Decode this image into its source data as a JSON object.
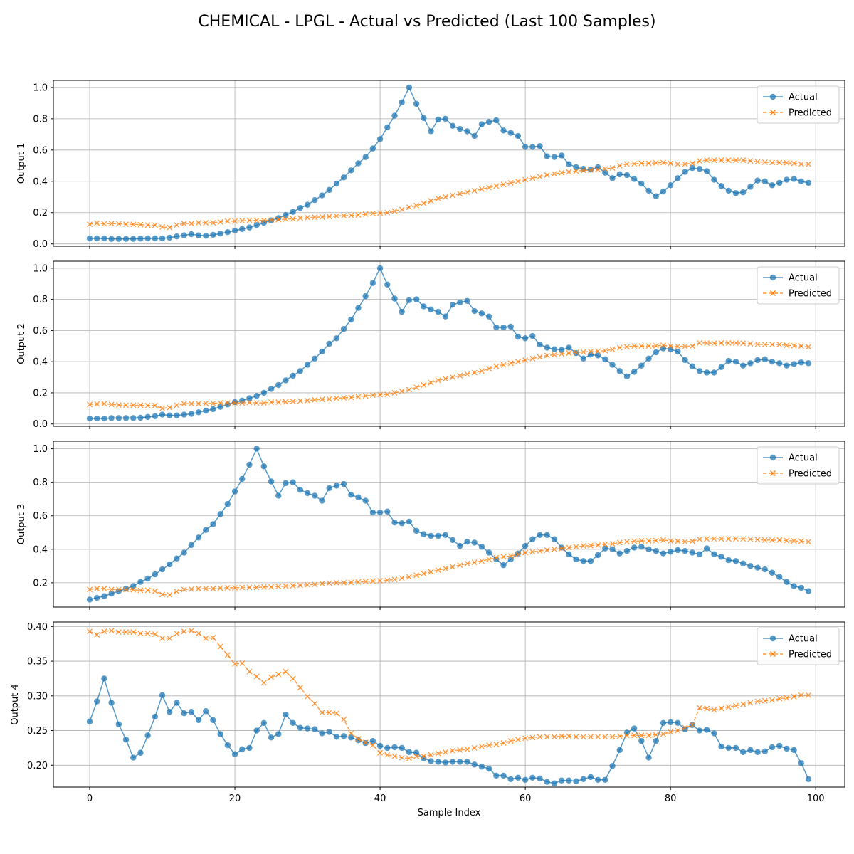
{
  "title": "CHEMICAL - LPGL - Actual vs Predicted (Last 100 Samples)",
  "xlabel": "Sample Index",
  "colors": {
    "actual": "#1f77b4",
    "predicted": "#ff7f0e",
    "grid": "#b0b0b0"
  },
  "chart_data": [
    {
      "type": "line",
      "ylabel": "Output 1",
      "xlim": [
        -5,
        104
      ],
      "ylim": [
        -0.015,
        1.045
      ],
      "xticks": [
        0,
        20,
        40,
        60,
        80,
        100
      ],
      "yticks": [
        0.0,
        0.2,
        0.4,
        0.6,
        0.8,
        1.0
      ],
      "yticklabels": [
        "0.0",
        "0.2",
        "0.4",
        "0.6",
        "0.8",
        "1.0"
      ],
      "grid": true,
      "legend": "top-right",
      "series": [
        {
          "name": "Actual",
          "marker": "o",
          "line": "solid",
          "values": [
            0.035,
            0.035,
            0.035,
            0.032,
            0.032,
            0.032,
            0.032,
            0.034,
            0.035,
            0.035,
            0.035,
            0.04,
            0.048,
            0.055,
            0.062,
            0.055,
            0.052,
            0.058,
            0.066,
            0.075,
            0.085,
            0.095,
            0.105,
            0.12,
            0.135,
            0.15,
            0.165,
            0.185,
            0.205,
            0.23,
            0.25,
            0.28,
            0.31,
            0.345,
            0.385,
            0.425,
            0.47,
            0.515,
            0.555,
            0.61,
            0.67,
            0.745,
            0.82,
            0.905,
            1.0,
            0.895,
            0.805,
            0.72,
            0.795,
            0.8,
            0.755,
            0.735,
            0.72,
            0.69,
            0.765,
            0.78,
            0.79,
            0.725,
            0.71,
            0.69,
            0.62,
            0.62,
            0.625,
            0.56,
            0.555,
            0.565,
            0.51,
            0.49,
            0.48,
            0.475,
            0.49,
            0.455,
            0.42,
            0.445,
            0.44,
            0.415,
            0.385,
            0.34,
            0.305,
            0.335,
            0.375,
            0.42,
            0.46,
            0.485,
            0.48,
            0.465,
            0.41,
            0.37,
            0.34,
            0.325,
            0.33,
            0.365,
            0.405,
            0.4,
            0.375,
            0.39,
            0.41,
            0.415,
            0.4,
            0.39
          ]
        },
        {
          "name": "Predicted",
          "marker": "x",
          "line": "dashed",
          "values": [
            0.125,
            0.133,
            0.128,
            0.13,
            0.128,
            0.125,
            0.125,
            0.123,
            0.12,
            0.12,
            0.108,
            0.105,
            0.12,
            0.13,
            0.13,
            0.135,
            0.135,
            0.135,
            0.14,
            0.145,
            0.145,
            0.148,
            0.15,
            0.15,
            0.15,
            0.152,
            0.155,
            0.158,
            0.16,
            0.165,
            0.168,
            0.17,
            0.172,
            0.175,
            0.178,
            0.18,
            0.182,
            0.185,
            0.19,
            0.195,
            0.198,
            0.2,
            0.21,
            0.22,
            0.235,
            0.245,
            0.26,
            0.275,
            0.29,
            0.3,
            0.31,
            0.32,
            0.33,
            0.34,
            0.35,
            0.36,
            0.37,
            0.38,
            0.39,
            0.4,
            0.41,
            0.42,
            0.43,
            0.44,
            0.448,
            0.455,
            0.46,
            0.465,
            0.47,
            0.472,
            0.475,
            0.48,
            0.485,
            0.5,
            0.51,
            0.512,
            0.515,
            0.515,
            0.518,
            0.52,
            0.515,
            0.51,
            0.51,
            0.515,
            0.53,
            0.535,
            0.535,
            0.535,
            0.535,
            0.535,
            0.535,
            0.53,
            0.525,
            0.522,
            0.52,
            0.52,
            0.518,
            0.515,
            0.51,
            0.51
          ]
        }
      ]
    },
    {
      "type": "line",
      "ylabel": "Output 2",
      "xlim": [
        -5,
        104
      ],
      "ylim": [
        -0.015,
        1.045
      ],
      "xticks": [
        0,
        20,
        40,
        60,
        80,
        100
      ],
      "yticks": [
        0.0,
        0.2,
        0.4,
        0.6,
        0.8,
        1.0
      ],
      "yticklabels": [
        "0.0",
        "0.2",
        "0.4",
        "0.6",
        "0.8",
        "1.0"
      ],
      "grid": true,
      "legend": "top-right",
      "series": [
        {
          "name": "Actual",
          "marker": "o",
          "line": "solid",
          "values": [
            0.035,
            0.035,
            0.035,
            0.038,
            0.038,
            0.038,
            0.038,
            0.04,
            0.045,
            0.05,
            0.06,
            0.055,
            0.055,
            0.06,
            0.065,
            0.075,
            0.085,
            0.095,
            0.11,
            0.125,
            0.14,
            0.15,
            0.165,
            0.18,
            0.2,
            0.225,
            0.25,
            0.28,
            0.31,
            0.34,
            0.38,
            0.42,
            0.465,
            0.515,
            0.55,
            0.61,
            0.67,
            0.745,
            0.82,
            0.905,
            1.0,
            0.895,
            0.805,
            0.72,
            0.795,
            0.8,
            0.755,
            0.735,
            0.72,
            0.69,
            0.765,
            0.78,
            0.79,
            0.725,
            0.71,
            0.69,
            0.62,
            0.62,
            0.625,
            0.56,
            0.55,
            0.565,
            0.51,
            0.49,
            0.48,
            0.475,
            0.49,
            0.455,
            0.42,
            0.445,
            0.44,
            0.415,
            0.38,
            0.34,
            0.305,
            0.335,
            0.375,
            0.42,
            0.46,
            0.485,
            0.48,
            0.465,
            0.41,
            0.37,
            0.34,
            0.33,
            0.33,
            0.365,
            0.405,
            0.4,
            0.375,
            0.39,
            0.41,
            0.415,
            0.4,
            0.39,
            0.375,
            0.385,
            0.395,
            0.39
          ]
        },
        {
          "name": "Predicted",
          "marker": "x",
          "line": "dashed",
          "values": [
            0.125,
            0.128,
            0.13,
            0.125,
            0.122,
            0.12,
            0.12,
            0.12,
            0.118,
            0.118,
            0.1,
            0.105,
            0.12,
            0.13,
            0.13,
            0.13,
            0.132,
            0.132,
            0.135,
            0.135,
            0.135,
            0.135,
            0.138,
            0.135,
            0.135,
            0.14,
            0.14,
            0.142,
            0.145,
            0.148,
            0.15,
            0.155,
            0.158,
            0.16,
            0.165,
            0.168,
            0.17,
            0.175,
            0.18,
            0.185,
            0.188,
            0.19,
            0.2,
            0.21,
            0.22,
            0.235,
            0.25,
            0.265,
            0.28,
            0.29,
            0.3,
            0.31,
            0.32,
            0.33,
            0.34,
            0.355,
            0.37,
            0.38,
            0.39,
            0.4,
            0.41,
            0.42,
            0.43,
            0.44,
            0.445,
            0.45,
            0.455,
            0.46,
            0.462,
            0.465,
            0.468,
            0.47,
            0.478,
            0.49,
            0.495,
            0.5,
            0.5,
            0.5,
            0.502,
            0.505,
            0.5,
            0.498,
            0.498,
            0.5,
            0.52,
            0.52,
            0.518,
            0.52,
            0.52,
            0.52,
            0.518,
            0.515,
            0.512,
            0.51,
            0.51,
            0.51,
            0.505,
            0.502,
            0.5,
            0.495
          ]
        }
      ]
    },
    {
      "type": "line",
      "ylabel": "Output 3",
      "xlim": [
        -5,
        104
      ],
      "ylim": [
        0.055,
        1.045
      ],
      "xticks": [
        0,
        20,
        40,
        60,
        80,
        100
      ],
      "yticks": [
        0.2,
        0.4,
        0.6,
        0.8,
        1.0
      ],
      "yticklabels": [
        "0.2",
        "0.4",
        "0.6",
        "0.8",
        "1.0"
      ],
      "grid": true,
      "legend": "top-right",
      "series": [
        {
          "name": "Actual",
          "marker": "o",
          "line": "solid",
          "values": [
            0.1,
            0.11,
            0.12,
            0.135,
            0.15,
            0.165,
            0.18,
            0.205,
            0.225,
            0.25,
            0.28,
            0.31,
            0.345,
            0.38,
            0.425,
            0.47,
            0.515,
            0.55,
            0.61,
            0.67,
            0.745,
            0.82,
            0.905,
            1.0,
            0.895,
            0.805,
            0.72,
            0.795,
            0.8,
            0.755,
            0.735,
            0.72,
            0.69,
            0.765,
            0.78,
            0.79,
            0.725,
            0.71,
            0.69,
            0.62,
            0.62,
            0.625,
            0.56,
            0.555,
            0.565,
            0.51,
            0.49,
            0.48,
            0.48,
            0.485,
            0.455,
            0.42,
            0.445,
            0.44,
            0.415,
            0.38,
            0.34,
            0.305,
            0.34,
            0.375,
            0.42,
            0.46,
            0.485,
            0.485,
            0.46,
            0.41,
            0.37,
            0.34,
            0.33,
            0.33,
            0.365,
            0.405,
            0.4,
            0.375,
            0.39,
            0.41,
            0.415,
            0.4,
            0.39,
            0.375,
            0.385,
            0.395,
            0.39,
            0.38,
            0.37,
            0.405,
            0.37,
            0.355,
            0.335,
            0.33,
            0.315,
            0.3,
            0.29,
            0.28,
            0.26,
            0.235,
            0.205,
            0.18,
            0.17,
            0.15
          ]
        },
        {
          "name": "Predicted",
          "marker": "x",
          "line": "dashed",
          "values": [
            0.16,
            0.165,
            0.165,
            0.16,
            0.16,
            0.16,
            0.158,
            0.155,
            0.155,
            0.15,
            0.13,
            0.128,
            0.148,
            0.16,
            0.162,
            0.165,
            0.165,
            0.165,
            0.168,
            0.17,
            0.17,
            0.172,
            0.172,
            0.172,
            0.175,
            0.175,
            0.178,
            0.18,
            0.182,
            0.185,
            0.188,
            0.19,
            0.195,
            0.198,
            0.2,
            0.2,
            0.202,
            0.205,
            0.208,
            0.21,
            0.212,
            0.215,
            0.22,
            0.228,
            0.235,
            0.245,
            0.255,
            0.265,
            0.275,
            0.285,
            0.295,
            0.305,
            0.315,
            0.322,
            0.33,
            0.34,
            0.35,
            0.355,
            0.36,
            0.37,
            0.38,
            0.385,
            0.39,
            0.395,
            0.4,
            0.405,
            0.41,
            0.415,
            0.42,
            0.422,
            0.425,
            0.43,
            0.432,
            0.44,
            0.445,
            0.448,
            0.45,
            0.45,
            0.452,
            0.455,
            0.45,
            0.448,
            0.445,
            0.448,
            0.46,
            0.462,
            0.462,
            0.462,
            0.462,
            0.462,
            0.462,
            0.46,
            0.458,
            0.455,
            0.455,
            0.455,
            0.452,
            0.45,
            0.448,
            0.445
          ]
        }
      ]
    },
    {
      "type": "line",
      "ylabel": "Output 4",
      "xlim": [
        -5,
        104
      ],
      "ylim": [
        0.1685,
        0.4065
      ],
      "xticks": [
        0,
        20,
        40,
        60,
        80,
        100
      ],
      "yticks": [
        0.2,
        0.25,
        0.3,
        0.35,
        0.4
      ],
      "yticklabels": [
        "0.20",
        "0.25",
        "0.30",
        "0.35",
        "0.40"
      ],
      "grid": true,
      "legend": "top-right",
      "series": [
        {
          "name": "Actual",
          "marker": "o",
          "line": "solid",
          "values": [
            0.263,
            0.292,
            0.325,
            0.29,
            0.259,
            0.237,
            0.211,
            0.218,
            0.243,
            0.27,
            0.301,
            0.277,
            0.29,
            0.275,
            0.277,
            0.265,
            0.278,
            0.265,
            0.245,
            0.229,
            0.216,
            0.223,
            0.225,
            0.25,
            0.261,
            0.24,
            0.245,
            0.273,
            0.261,
            0.254,
            0.253,
            0.252,
            0.246,
            0.248,
            0.241,
            0.242,
            0.24,
            0.236,
            0.232,
            0.235,
            0.228,
            0.225,
            0.226,
            0.225,
            0.219,
            0.218,
            0.21,
            0.206,
            0.205,
            0.204,
            0.205,
            0.205,
            0.205,
            0.201,
            0.198,
            0.195,
            0.185,
            0.185,
            0.18,
            0.182,
            0.179,
            0.182,
            0.181,
            0.176,
            0.174,
            0.178,
            0.178,
            0.177,
            0.18,
            0.183,
            0.179,
            0.179,
            0.199,
            0.222,
            0.247,
            0.253,
            0.235,
            0.211,
            0.235,
            0.261,
            0.262,
            0.261,
            0.252,
            0.258,
            0.25,
            0.251,
            0.246,
            0.227,
            0.225,
            0.225,
            0.219,
            0.222,
            0.219,
            0.22,
            0.226,
            0.228,
            0.224,
            0.222,
            0.203,
            0.18
          ]
        },
        {
          "name": "Predicted",
          "marker": "x",
          "line": "dashed",
          "values": [
            0.393,
            0.388,
            0.393,
            0.394,
            0.392,
            0.392,
            0.392,
            0.39,
            0.39,
            0.389,
            0.383,
            0.383,
            0.39,
            0.393,
            0.394,
            0.39,
            0.383,
            0.384,
            0.371,
            0.359,
            0.346,
            0.347,
            0.335,
            0.328,
            0.319,
            0.327,
            0.331,
            0.335,
            0.325,
            0.312,
            0.299,
            0.289,
            0.276,
            0.276,
            0.275,
            0.266,
            0.246,
            0.238,
            0.233,
            0.229,
            0.218,
            0.215,
            0.213,
            0.211,
            0.21,
            0.213,
            0.213,
            0.215,
            0.217,
            0.219,
            0.221,
            0.222,
            0.223,
            0.225,
            0.227,
            0.229,
            0.23,
            0.232,
            0.235,
            0.237,
            0.239,
            0.24,
            0.241,
            0.241,
            0.241,
            0.242,
            0.242,
            0.241,
            0.241,
            0.241,
            0.241,
            0.241,
            0.241,
            0.242,
            0.243,
            0.243,
            0.243,
            0.243,
            0.244,
            0.245,
            0.248,
            0.25,
            0.254,
            0.258,
            0.283,
            0.282,
            0.28,
            0.282,
            0.284,
            0.286,
            0.288,
            0.29,
            0.292,
            0.293,
            0.294,
            0.296,
            0.297,
            0.299,
            0.301,
            0.301
          ]
        }
      ]
    }
  ]
}
